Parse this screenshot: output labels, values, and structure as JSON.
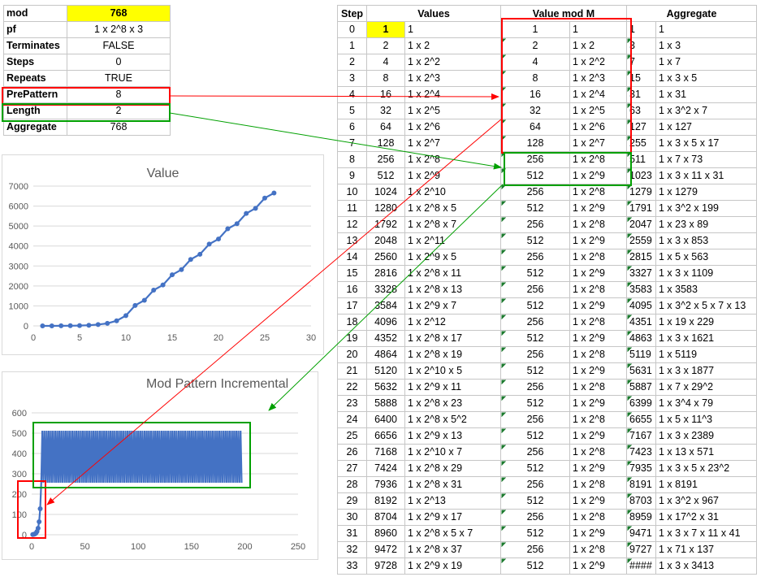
{
  "params": [
    {
      "key": "mod",
      "value": "768",
      "highlight": true
    },
    {
      "key": "pf",
      "value": "1 x 2^8 x 3"
    },
    {
      "key": "Terminates",
      "value": "FALSE"
    },
    {
      "key": "Steps",
      "value": "0"
    },
    {
      "key": "Repeats",
      "value": "TRUE"
    },
    {
      "key": "PrePattern",
      "value": "8"
    },
    {
      "key": "Length",
      "value": "2"
    },
    {
      "key": "Aggregate",
      "value": "768"
    }
  ],
  "table": {
    "headers": [
      "Step",
      "Values",
      "Value mod M",
      "Aggregate"
    ],
    "rows": [
      [
        "0",
        "1",
        "1",
        "1",
        "1",
        "1",
        "1"
      ],
      [
        "1",
        "2",
        "1 x 2",
        "2",
        "1 x 2",
        "3",
        "1 x 3"
      ],
      [
        "2",
        "4",
        "1 x 2^2",
        "4",
        "1 x 2^2",
        "7",
        "1 x 7"
      ],
      [
        "3",
        "8",
        "1 x 2^3",
        "8",
        "1 x 2^3",
        "15",
        "1 x 3 x 5"
      ],
      [
        "4",
        "16",
        "1 x 2^4",
        "16",
        "1 x 2^4",
        "31",
        "1 x 31"
      ],
      [
        "5",
        "32",
        "1 x 2^5",
        "32",
        "1 x 2^5",
        "63",
        "1 x 3^2 x 7"
      ],
      [
        "6",
        "64",
        "1 x 2^6",
        "64",
        "1 x 2^6",
        "127",
        "1 x 127"
      ],
      [
        "7",
        "128",
        "1 x 2^7",
        "128",
        "1 x 2^7",
        "255",
        "1 x 3 x 5 x 17"
      ],
      [
        "8",
        "256",
        "1 x 2^8",
        "256",
        "1 x 2^8",
        "511",
        "1 x 7 x 73"
      ],
      [
        "9",
        "512",
        "1 x 2^9",
        "512",
        "1 x 2^9",
        "1023",
        "1 x 3 x 11 x 31"
      ],
      [
        "10",
        "1024",
        "1 x 2^10",
        "256",
        "1 x 2^8",
        "1279",
        "1 x 1279"
      ],
      [
        "11",
        "1280",
        "1 x 2^8 x 5",
        "512",
        "1 x 2^9",
        "1791",
        "1 x 3^2 x 199"
      ],
      [
        "12",
        "1792",
        "1 x 2^8 x 7",
        "256",
        "1 x 2^8",
        "2047",
        "1 x 23 x 89"
      ],
      [
        "13",
        "2048",
        "1 x 2^11",
        "512",
        "1 x 2^9",
        "2559",
        "1 x 3 x 853"
      ],
      [
        "14",
        "2560",
        "1 x 2^9 x 5",
        "256",
        "1 x 2^8",
        "2815",
        "1 x 5 x 563"
      ],
      [
        "15",
        "2816",
        "1 x 2^8 x 11",
        "512",
        "1 x 2^9",
        "3327",
        "1 x 3 x 1109"
      ],
      [
        "16",
        "3328",
        "1 x 2^8 x 13",
        "256",
        "1 x 2^8",
        "3583",
        "1 x 3583"
      ],
      [
        "17",
        "3584",
        "1 x 2^9 x 7",
        "512",
        "1 x 2^9",
        "4095",
        "1 x 3^2 x 5 x 7 x 13"
      ],
      [
        "18",
        "4096",
        "1 x 2^12",
        "256",
        "1 x 2^8",
        "4351",
        "1 x 19 x 229"
      ],
      [
        "19",
        "4352",
        "1 x 2^8 x 17",
        "512",
        "1 x 2^9",
        "4863",
        "1 x 3 x 1621"
      ],
      [
        "20",
        "4864",
        "1 x 2^8 x 19",
        "256",
        "1 x 2^8",
        "5119",
        "1 x 5119"
      ],
      [
        "21",
        "5120",
        "1 x 2^10 x 5",
        "512",
        "1 x 2^9",
        "5631",
        "1 x 3 x 1877"
      ],
      [
        "22",
        "5632",
        "1 x 2^9 x 11",
        "256",
        "1 x 2^8",
        "5887",
        "1 x 7 x 29^2"
      ],
      [
        "23",
        "5888",
        "1 x 2^8 x 23",
        "512",
        "1 x 2^9",
        "6399",
        "1 x 3^4 x 79"
      ],
      [
        "24",
        "6400",
        "1 x 2^8 x 5^2",
        "256",
        "1 x 2^8",
        "6655",
        "1 x 5 x 11^3"
      ],
      [
        "25",
        "6656",
        "1 x 2^9 x 13",
        "512",
        "1 x 2^9",
        "7167",
        "1 x 3 x 2389"
      ],
      [
        "26",
        "7168",
        "1 x 2^10 x 7",
        "256",
        "1 x 2^8",
        "7423",
        "1 x 13 x 571"
      ],
      [
        "27",
        "7424",
        "1 x 2^8 x 29",
        "512",
        "1 x 2^9",
        "7935",
        "1 x 3 x 5 x 23^2"
      ],
      [
        "28",
        "7936",
        "1 x 2^8 x 31",
        "256",
        "1 x 2^8",
        "8191",
        "1 x 8191"
      ],
      [
        "29",
        "8192",
        "1 x 2^13",
        "512",
        "1 x 2^9",
        "8703",
        "1 x 3^2 x 967"
      ],
      [
        "30",
        "8704",
        "1 x 2^9 x 17",
        "256",
        "1 x 2^8",
        "8959",
        "1 x 17^2 x 31"
      ],
      [
        "31",
        "8960",
        "1 x 2^8 x 5 x 7",
        "512",
        "1 x 2^9",
        "9471",
        "1 x 3 x 7 x 11 x 41"
      ],
      [
        "32",
        "9472",
        "1 x 2^8 x 37",
        "256",
        "1 x 2^8",
        "9727",
        "1 x 71 x 137"
      ],
      [
        "33",
        "9728",
        "1 x 2^9 x 19",
        "512",
        "1 x 2^9",
        "####",
        "1 x 3 x 3413"
      ]
    ]
  },
  "chart_data": [
    {
      "type": "line",
      "title": "Value",
      "x": [
        1,
        2,
        3,
        4,
        5,
        6,
        7,
        8,
        9,
        10,
        11,
        12,
        13,
        14,
        15,
        16,
        17,
        18,
        19,
        20,
        21,
        22,
        23,
        24,
        25,
        26
      ],
      "values": [
        1,
        2,
        4,
        8,
        16,
        32,
        64,
        128,
        256,
        512,
        1024,
        1280,
        1792,
        2048,
        2560,
        2816,
        3328,
        3584,
        4096,
        4352,
        4864,
        5120,
        5632,
        5888,
        6400,
        6656
      ],
      "xlim": [
        0,
        30
      ],
      "ylim": [
        0,
        7000
      ],
      "xticks": [
        "0",
        "5",
        "10",
        "15",
        "20",
        "25",
        "30"
      ],
      "yticks": [
        "0",
        "1000",
        "2000",
        "3000",
        "4000",
        "5000",
        "6000",
        "7000"
      ],
      "color": "#4472c4"
    },
    {
      "type": "line",
      "title": "Mod Pattern Incremental",
      "x_start": 1,
      "values_prefix": [
        1,
        2,
        4,
        8,
        16,
        32,
        64,
        128
      ],
      "repeat_pattern": [
        256,
        512
      ],
      "x_end": 197,
      "xlim": [
        0,
        250
      ],
      "ylim": [
        0,
        600
      ],
      "xticks": [
        "0",
        "50",
        "100",
        "150",
        "200",
        "250"
      ],
      "yticks": [
        "0",
        "100",
        "200",
        "300",
        "400",
        "500",
        "600"
      ],
      "color": "#4472c4"
    }
  ],
  "annotation_colors": {
    "red": "#ff0000",
    "green": "#00a000"
  }
}
